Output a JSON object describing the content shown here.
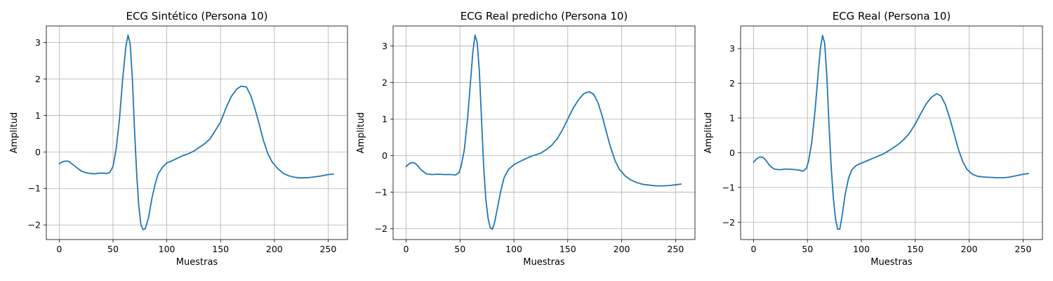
{
  "chart_data": [
    {
      "type": "line",
      "title": "ECG Sintético (Persona 10)",
      "xlabel": "Muestras",
      "ylabel": "Amplitud",
      "xlim": [
        -12,
        268
      ],
      "ylim": [
        -2.4,
        3.45
      ],
      "xticks": [
        0,
        50,
        100,
        150,
        200,
        250
      ],
      "yticks": [
        -2,
        -1,
        0,
        1,
        2,
        3
      ],
      "grid": true,
      "series": [
        {
          "color": "#1f77b4",
          "points": [
            [
              0,
              -0.32
            ],
            [
              3,
              -0.27
            ],
            [
              6,
              -0.25
            ],
            [
              9,
              -0.26
            ],
            [
              12,
              -0.33
            ],
            [
              15,
              -0.4
            ],
            [
              18,
              -0.47
            ],
            [
              21,
              -0.53
            ],
            [
              25,
              -0.57
            ],
            [
              29,
              -0.59
            ],
            [
              33,
              -0.6
            ],
            [
              37,
              -0.58
            ],
            [
              41,
              -0.58
            ],
            [
              44,
              -0.59
            ],
            [
              47,
              -0.56
            ],
            [
              50,
              -0.4
            ],
            [
              53,
              0.1
            ],
            [
              56,
              0.9
            ],
            [
              59,
              2.0
            ],
            [
              62,
              2.9
            ],
            [
              64,
              3.2
            ],
            [
              66,
              2.95
            ],
            [
              68,
              2.0
            ],
            [
              70,
              0.6
            ],
            [
              72,
              -0.6
            ],
            [
              74,
              -1.5
            ],
            [
              76,
              -2.0
            ],
            [
              78,
              -2.13
            ],
            [
              80,
              -2.1
            ],
            [
              83,
              -1.8
            ],
            [
              86,
              -1.3
            ],
            [
              89,
              -0.9
            ],
            [
              92,
              -0.6
            ],
            [
              96,
              -0.42
            ],
            [
              100,
              -0.3
            ],
            [
              105,
              -0.24
            ],
            [
              110,
              -0.17
            ],
            [
              115,
              -0.1
            ],
            [
              120,
              -0.05
            ],
            [
              125,
              0.02
            ],
            [
              130,
              0.12
            ],
            [
              135,
              0.22
            ],
            [
              140,
              0.35
            ],
            [
              145,
              0.58
            ],
            [
              150,
              0.82
            ],
            [
              155,
              1.2
            ],
            [
              160,
              1.52
            ],
            [
              165,
              1.72
            ],
            [
              169,
              1.8
            ],
            [
              174,
              1.78
            ],
            [
              178,
              1.55
            ],
            [
              182,
              1.18
            ],
            [
              186,
              0.75
            ],
            [
              190,
              0.3
            ],
            [
              194,
              -0.05
            ],
            [
              198,
              -0.28
            ],
            [
              203,
              -0.45
            ],
            [
              208,
              -0.58
            ],
            [
              213,
              -0.65
            ],
            [
              218,
              -0.69
            ],
            [
              223,
              -0.71
            ],
            [
              228,
              -0.71
            ],
            [
              233,
              -0.7
            ],
            [
              238,
              -0.68
            ],
            [
              243,
              -0.66
            ],
            [
              248,
              -0.63
            ],
            [
              253,
              -0.61
            ],
            [
              255,
              -0.61
            ]
          ]
        }
      ]
    },
    {
      "type": "line",
      "title": "ECG Real predicho (Persona 10)",
      "xlabel": "Muestras",
      "ylabel": "Amplitud",
      "xlim": [
        -12,
        268
      ],
      "ylim": [
        -2.3,
        3.55
      ],
      "xticks": [
        0,
        50,
        100,
        150,
        200,
        250
      ],
      "yticks": [
        -2,
        -1,
        0,
        1,
        2,
        3
      ],
      "grid": true,
      "series": [
        {
          "color": "#1f77b4",
          "points": [
            [
              0,
              -0.3
            ],
            [
              3,
              -0.22
            ],
            [
              6,
              -0.19
            ],
            [
              9,
              -0.22
            ],
            [
              12,
              -0.32
            ],
            [
              15,
              -0.42
            ],
            [
              19,
              -0.5
            ],
            [
              24,
              -0.52
            ],
            [
              30,
              -0.51
            ],
            [
              36,
              -0.52
            ],
            [
              42,
              -0.52
            ],
            [
              46,
              -0.53
            ],
            [
              49,
              -0.47
            ],
            [
              51,
              -0.3
            ],
            [
              54,
              0.15
            ],
            [
              57,
              1.0
            ],
            [
              60,
              2.1
            ],
            [
              62,
              2.85
            ],
            [
              64,
              3.3
            ],
            [
              66,
              3.1
            ],
            [
              68,
              2.3
            ],
            [
              70,
              1.0
            ],
            [
              72,
              -0.3
            ],
            [
              74,
              -1.2
            ],
            [
              76,
              -1.7
            ],
            [
              78,
              -1.97
            ],
            [
              80,
              -2.02
            ],
            [
              82,
              -1.85
            ],
            [
              85,
              -1.4
            ],
            [
              88,
              -0.95
            ],
            [
              91,
              -0.6
            ],
            [
              95,
              -0.38
            ],
            [
              100,
              -0.25
            ],
            [
              105,
              -0.17
            ],
            [
              110,
              -0.1
            ],
            [
              115,
              -0.03
            ],
            [
              120,
              0.02
            ],
            [
              125,
              0.07
            ],
            [
              130,
              0.16
            ],
            [
              135,
              0.28
            ],
            [
              140,
              0.45
            ],
            [
              145,
              0.7
            ],
            [
              150,
              1.0
            ],
            [
              155,
              1.3
            ],
            [
              160,
              1.53
            ],
            [
              165,
              1.7
            ],
            [
              170,
              1.75
            ],
            [
              174,
              1.68
            ],
            [
              178,
              1.45
            ],
            [
              182,
              1.08
            ],
            [
              186,
              0.62
            ],
            [
              190,
              0.2
            ],
            [
              194,
              -0.15
            ],
            [
              198,
              -0.38
            ],
            [
              203,
              -0.55
            ],
            [
              208,
              -0.66
            ],
            [
              214,
              -0.74
            ],
            [
              220,
              -0.79
            ],
            [
              226,
              -0.81
            ],
            [
              232,
              -0.83
            ],
            [
              238,
              -0.83
            ],
            [
              244,
              -0.82
            ],
            [
              250,
              -0.8
            ],
            [
              255,
              -0.78
            ]
          ]
        }
      ]
    },
    {
      "type": "line",
      "title": "ECG Real (Persona 10)",
      "xlabel": "Muestras",
      "ylabel": "Amplitud",
      "xlim": [
        -12,
        268
      ],
      "ylim": [
        -2.5,
        3.65
      ],
      "xticks": [
        0,
        50,
        100,
        150,
        200,
        250
      ],
      "yticks": [
        -2,
        -1,
        0,
        1,
        2,
        3
      ],
      "grid": true,
      "series": [
        {
          "color": "#1f77b4",
          "points": [
            [
              0,
              -0.27
            ],
            [
              3,
              -0.17
            ],
            [
              6,
              -0.12
            ],
            [
              9,
              -0.14
            ],
            [
              12,
              -0.24
            ],
            [
              15,
              -0.37
            ],
            [
              19,
              -0.47
            ],
            [
              24,
              -0.49
            ],
            [
              30,
              -0.47
            ],
            [
              36,
              -0.48
            ],
            [
              42,
              -0.5
            ],
            [
              46,
              -0.53
            ],
            [
              49,
              -0.45
            ],
            [
              51,
              -0.25
            ],
            [
              54,
              0.3
            ],
            [
              57,
              1.2
            ],
            [
              60,
              2.3
            ],
            [
              62,
              3.0
            ],
            [
              64,
              3.38
            ],
            [
              66,
              3.15
            ],
            [
              68,
              2.2
            ],
            [
              70,
              0.8
            ],
            [
              72,
              -0.4
            ],
            [
              74,
              -1.3
            ],
            [
              76,
              -1.9
            ],
            [
              78,
              -2.2
            ],
            [
              80,
              -2.2
            ],
            [
              82,
              -1.85
            ],
            [
              85,
              -1.2
            ],
            [
              88,
              -0.75
            ],
            [
              91,
              -0.5
            ],
            [
              95,
              -0.37
            ],
            [
              100,
              -0.3
            ],
            [
              110,
              -0.17
            ],
            [
              120,
              -0.04
            ],
            [
              125,
              0.05
            ],
            [
              130,
              0.15
            ],
            [
              135,
              0.26
            ],
            [
              140,
              0.4
            ],
            [
              145,
              0.58
            ],
            [
              150,
              0.83
            ],
            [
              155,
              1.12
            ],
            [
              160,
              1.4
            ],
            [
              165,
              1.6
            ],
            [
              170,
              1.7
            ],
            [
              174,
              1.63
            ],
            [
              178,
              1.38
            ],
            [
              182,
              1.0
            ],
            [
              186,
              0.55
            ],
            [
              190,
              0.1
            ],
            [
              194,
              -0.25
            ],
            [
              198,
              -0.48
            ],
            [
              203,
              -0.62
            ],
            [
              208,
              -0.68
            ],
            [
              214,
              -0.7
            ],
            [
              220,
              -0.71
            ],
            [
              226,
              -0.72
            ],
            [
              232,
              -0.72
            ],
            [
              238,
              -0.7
            ],
            [
              244,
              -0.66
            ],
            [
              250,
              -0.62
            ],
            [
              255,
              -0.6
            ]
          ]
        }
      ]
    }
  ]
}
